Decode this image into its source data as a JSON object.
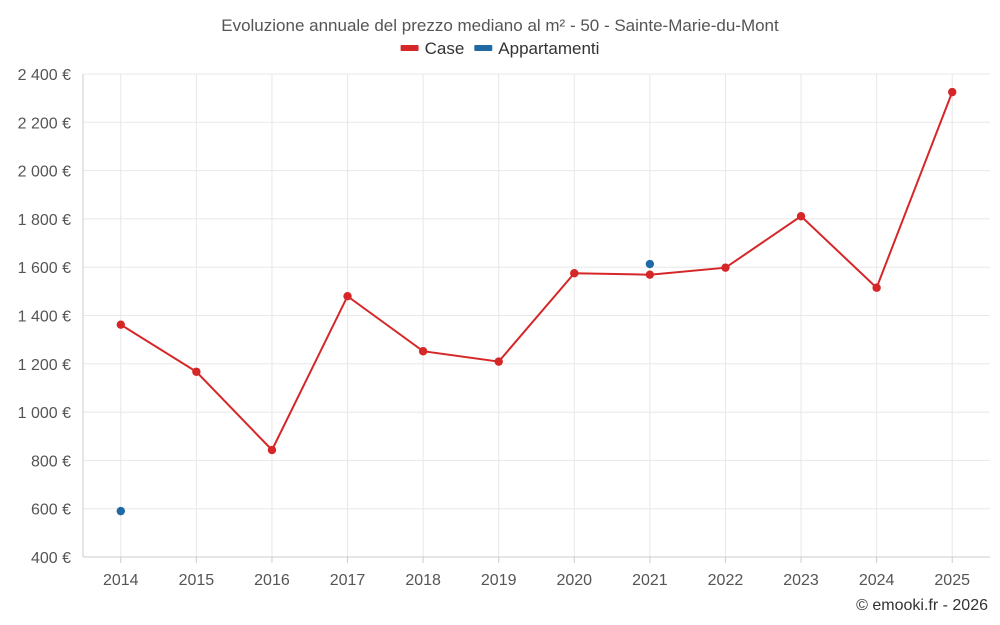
{
  "chart_data": {
    "type": "line",
    "title": "Evoluzione annuale del prezzo mediano al m² - 50 - Sainte-Marie-du-Mont",
    "categories": [
      "2014",
      "2015",
      "2016",
      "2017",
      "2018",
      "2019",
      "2020",
      "2021",
      "2022",
      "2023",
      "2024",
      "2025"
    ],
    "series": [
      {
        "name": "Case",
        "color": "#d62728",
        "values": [
          1362,
          1167,
          843,
          1480,
          1252,
          1209,
          1575,
          1569,
          1598,
          1811,
          1515,
          2325
        ]
      },
      {
        "name": "Appartamenti",
        "color": "#1f6aa5",
        "values": [
          590,
          null,
          null,
          null,
          null,
          null,
          null,
          1613,
          null,
          null,
          null,
          null
        ]
      }
    ],
    "ylim": [
      400,
      2400
    ],
    "yticks": [
      400,
      600,
      800,
      1000,
      1200,
      1400,
      1600,
      1800,
      2000,
      2200,
      2400
    ],
    "ytick_labels": [
      "400 €",
      "600 €",
      "800 €",
      "1 000 €",
      "1 200 €",
      "1 400 €",
      "1 600 €",
      "1 800 €",
      "2 000 €",
      "2 200 €",
      "2 400 €"
    ],
    "xlabel": "",
    "ylabel": "",
    "grid": true,
    "legend_position": "top-center"
  },
  "credit": "© emooki.fr - 2026"
}
